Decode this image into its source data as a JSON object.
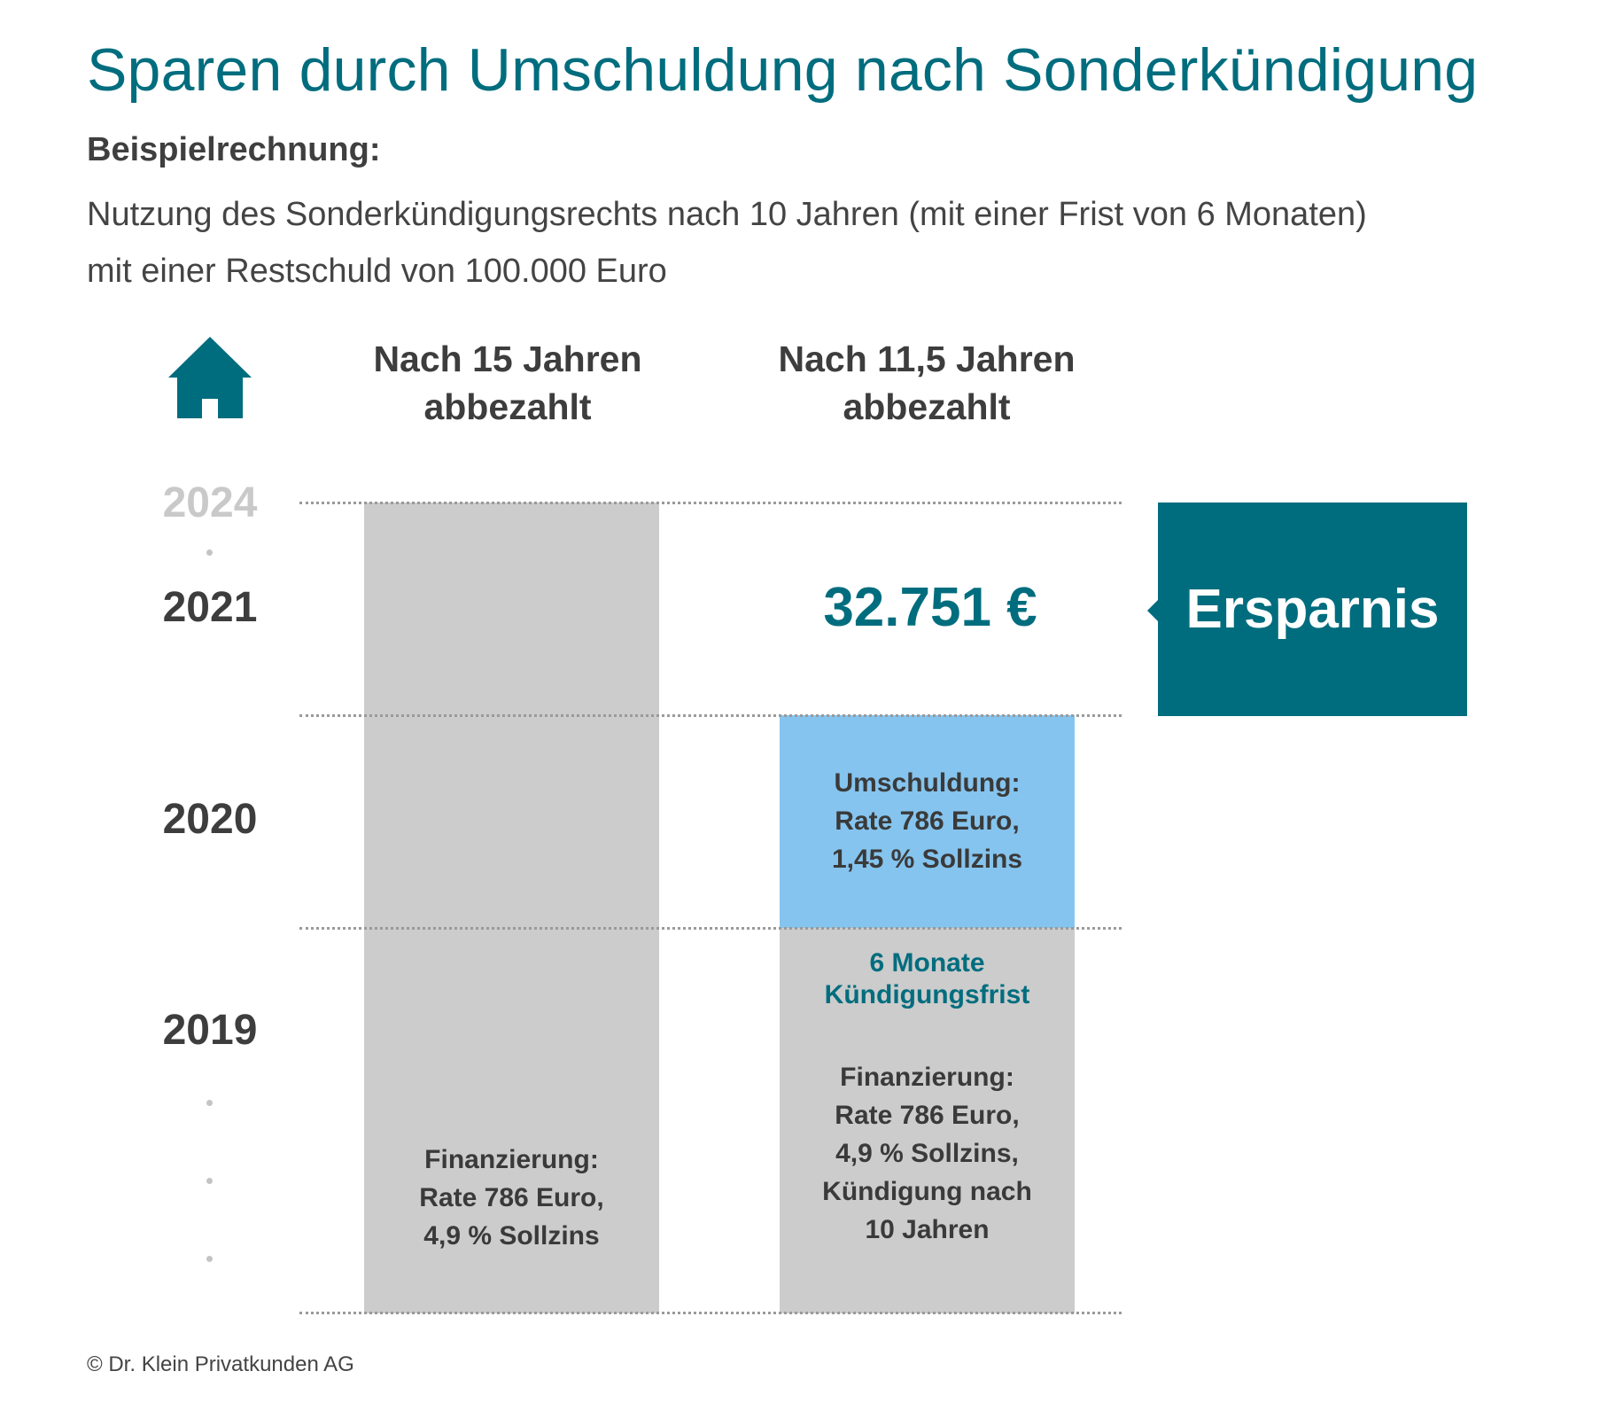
{
  "title": "Sparen durch Umschuldung nach Sonderkündigung",
  "subheading": "Beispielrechnung:",
  "description": [
    "Nutzung des Sonderkündigungsrechts nach 10 Jahren (mit einer Frist von 6 Monaten)",
    "mit einer Restschuld von 100.000 Euro"
  ],
  "icon": "house-icon",
  "chart_data": {
    "type": "bar",
    "orientation": "vertical",
    "y_axis": {
      "ticks": [
        "2019",
        "2020",
        "2021",
        "2024"
      ],
      "faded_ticks": [
        "2024"
      ]
    },
    "columns": [
      {
        "header": [
          "Nach 15 Jahren",
          "abbezahlt"
        ],
        "segments": [
          {
            "label": [
              "Finanzierung:",
              "Rate 786 Euro,",
              "4,9 % Sollzins"
            ],
            "color": "#cccccc"
          }
        ]
      },
      {
        "header": [
          "Nach 11,5 Jahren",
          "abbezahlt"
        ],
        "segments": [
          {
            "notice": [
              "6 Monate",
              "Kündigungsfrist"
            ],
            "label": [
              "Finanzierung:",
              "Rate 786 Euro,",
              "4,9 % Sollzins,",
              "Kündigung nach",
              "10 Jahren"
            ],
            "color": "#cccccc"
          },
          {
            "label": [
              "Umschuldung:",
              "Rate 786 Euro,",
              "1,45 % Sollzins"
            ],
            "color": "#85c4ee"
          }
        ],
        "savings": "32.751 €"
      }
    ],
    "savings_badge": "Ersparnis",
    "colors": {
      "accent": "#006d7e",
      "refinance": "#85c4ee",
      "financing": "#cccccc"
    }
  },
  "copyright": "© Dr. Klein Privatkunden AG"
}
